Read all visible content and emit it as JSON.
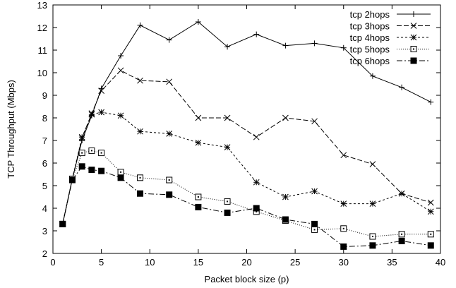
{
  "chart_data": {
    "type": "line",
    "xlabel": "Packet block size (p)",
    "ylabel": "TCP Throughput (Mbps)",
    "xlim": [
      0,
      40
    ],
    "ylim": [
      2,
      13
    ],
    "xticks": [
      0,
      5,
      10,
      15,
      20,
      25,
      30,
      35,
      40
    ],
    "yticks": [
      2,
      3,
      4,
      5,
      6,
      7,
      8,
      9,
      10,
      11,
      12,
      13
    ],
    "grid": false,
    "legend_position": "top-right",
    "series": [
      {
        "name": "tcp 2hops",
        "marker": "plus",
        "dash": "",
        "x": [
          1,
          2,
          3,
          4,
          5,
          7,
          9,
          12,
          15,
          18,
          21,
          24,
          27,
          30,
          33,
          36,
          39
        ],
        "y": [
          3.3,
          5.3,
          7.0,
          8.1,
          9.3,
          10.75,
          12.1,
          11.45,
          12.25,
          11.15,
          11.7,
          11.2,
          11.3,
          11.1,
          9.85,
          9.35,
          8.7
        ]
      },
      {
        "name": "tcp 3hops",
        "marker": "cross",
        "dash": "7,3",
        "x": [
          1,
          2,
          3,
          4,
          5,
          7,
          9,
          12,
          15,
          18,
          21,
          24,
          27,
          30,
          33,
          36,
          39
        ],
        "y": [
          3.3,
          5.3,
          7.1,
          8.2,
          9.2,
          10.1,
          9.65,
          9.6,
          8.0,
          8.0,
          7.15,
          8.0,
          7.85,
          6.35,
          5.95,
          4.65,
          4.25
        ]
      },
      {
        "name": "tcp 4hops",
        "marker": "star",
        "dash": "3,3",
        "x": [
          1,
          2,
          3,
          4,
          5,
          7,
          9,
          12,
          15,
          18,
          21,
          24,
          27,
          30,
          33,
          36,
          39
        ],
        "y": [
          3.3,
          5.3,
          7.15,
          8.15,
          8.25,
          8.1,
          7.4,
          7.3,
          6.9,
          6.7,
          5.15,
          4.5,
          4.75,
          4.2,
          4.2,
          4.65,
          3.85
        ]
      },
      {
        "name": "tcp 5hops",
        "marker": "square-open",
        "dash": "1,2",
        "x": [
          1,
          2,
          3,
          4,
          5,
          7,
          9,
          12,
          15,
          18,
          21,
          24,
          27,
          30,
          33,
          36,
          39
        ],
        "y": [
          3.3,
          5.3,
          6.45,
          6.55,
          6.45,
          5.6,
          5.35,
          5.25,
          4.5,
          4.3,
          3.85,
          3.45,
          3.05,
          3.1,
          2.75,
          2.85,
          2.85
        ]
      },
      {
        "name": "tcp 6hops",
        "marker": "square-filled",
        "dash": "8,3,2,3",
        "x": [
          1,
          2,
          3,
          4,
          5,
          7,
          9,
          12,
          15,
          18,
          21,
          24,
          27,
          30,
          33,
          36,
          39
        ],
        "y": [
          3.3,
          5.25,
          5.85,
          5.7,
          5.65,
          5.35,
          4.65,
          4.6,
          4.05,
          3.8,
          4.0,
          3.5,
          3.3,
          2.3,
          2.35,
          2.55,
          2.35
        ]
      }
    ]
  }
}
